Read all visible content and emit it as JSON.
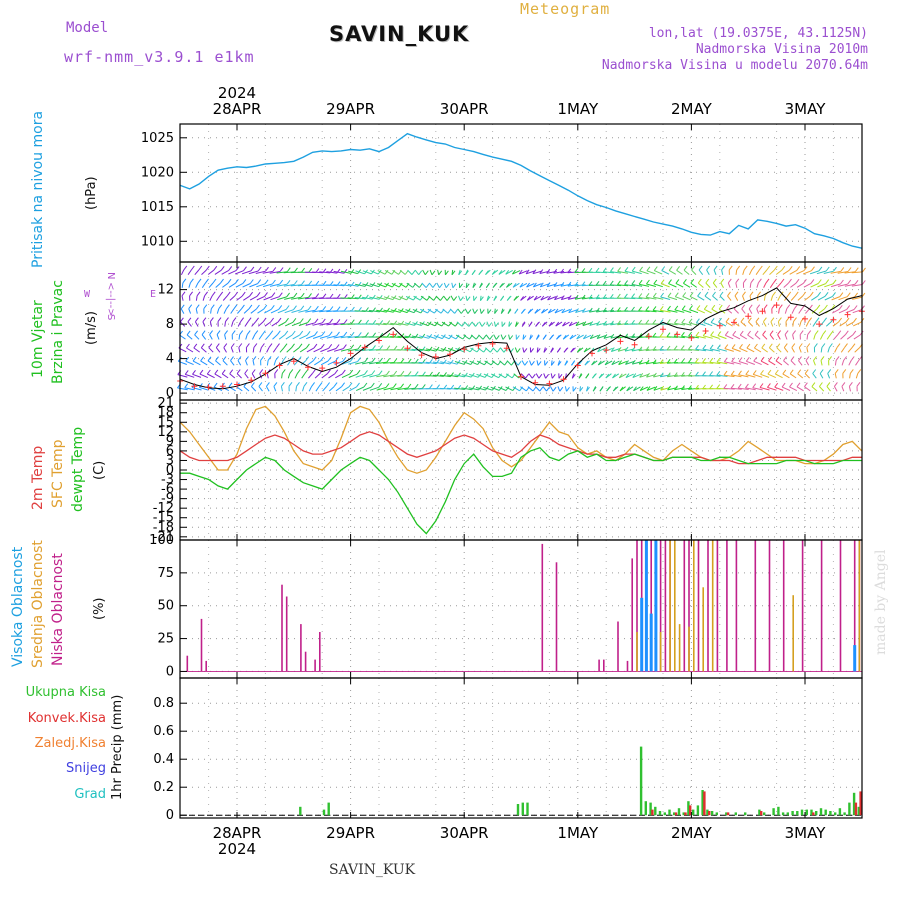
{
  "header": {
    "model_label": "Model",
    "model_name": "wrf-nmm_v3.9.1 e1km",
    "station": "SAVIN_KUK",
    "meteogram_label": "Meteogram",
    "lonlat": "lon,lat (19.0375E, 43.1125N)",
    "elevation": "Nadmorska Visina 2010m",
    "model_elevation": "Nadmorska Visina u modelu 2070.64m"
  },
  "footer": {
    "station": "SAVIN_KUK"
  },
  "watermark": "made by Angel",
  "time_axis": {
    "year": "2024",
    "days": [
      "28APR",
      "29APR",
      "30APR",
      "1MAY",
      "2MAY",
      "3MAY"
    ],
    "hours_start": 0,
    "hours_end": 144
  },
  "panel_labels": {
    "pressure": [
      "Pritisak na nivou mora",
      "(hPa)"
    ],
    "wind": [
      "10m Vjetar",
      "Brzina i Pravac",
      "(m/s)"
    ],
    "compass": [
      "N",
      "<--|-->",
      "W",
      "E",
      "S"
    ],
    "temp": [
      "2m Temp",
      "SFC Temp",
      "dewpt Temp",
      "(C)"
    ],
    "cloud": [
      "Visoka Oblacnost",
      "Srednja Oblacnost",
      "Niska Oblacnost",
      "(%)"
    ],
    "precip": [
      "Ukupna Kisa",
      "Konvek.Kisa",
      "Zaledj.Kisa",
      "Snijeg",
      "Grad",
      "1hr Precip (mm)"
    ]
  },
  "colors": {
    "pressure": "#1ea0e0",
    "temp2m": "#e04040",
    "sfc": "#e0a030",
    "dew": "#20c020",
    "high_cloud": "#1e90ff",
    "mid_cloud": "#d4a020",
    "low_cloud": "#c0208a",
    "total_precip": "#30c030",
    "conv_precip": "#e03030",
    "frozen_precip": "#f08030",
    "snow": "#4040e0",
    "hail": "#20c0c0",
    "wind_label": "#20c020",
    "compass": "#b050d0",
    "cloud_label_high": "#1ea0e0",
    "cloud_label_mid": "#e0a030",
    "cloud_label_low": "#c0208a"
  },
  "chart_data": [
    {
      "type": "line",
      "name": "pressure",
      "ylabel": "Pritisak na nivou mora (hPa)",
      "ylim": [
        1007,
        1027
      ],
      "yticks": [
        1010,
        1015,
        1020,
        1025
      ],
      "grid": true,
      "x": [
        0,
        2,
        4,
        6,
        8,
        10,
        12,
        14,
        16,
        18,
        20,
        22,
        24,
        26,
        28,
        30,
        32,
        34,
        36,
        38,
        40,
        42,
        44,
        46,
        48,
        50,
        52,
        54,
        56,
        58,
        60,
        62,
        64,
        66,
        68,
        70,
        72,
        74,
        76,
        78,
        80,
        82,
        84,
        86,
        88,
        90,
        92,
        94,
        96,
        98,
        100,
        102,
        104,
        106,
        108,
        110,
        112,
        114,
        116,
        118,
        120,
        122,
        124,
        126,
        128,
        130,
        132,
        134,
        136,
        138,
        140,
        142,
        144
      ],
      "values": [
        1018.1,
        1017.6,
        1018.3,
        1019.4,
        1020.3,
        1020.6,
        1020.8,
        1020.7,
        1020.9,
        1021.2,
        1021.3,
        1021.4,
        1021.6,
        1022.2,
        1022.9,
        1023.1,
        1023.0,
        1023.1,
        1023.3,
        1023.2,
        1023.4,
        1023.0,
        1023.6,
        1024.6,
        1025.6,
        1025.1,
        1024.7,
        1024.3,
        1024.1,
        1023.6,
        1023.3,
        1023.0,
        1022.6,
        1022.2,
        1021.9,
        1021.6,
        1021.0,
        1020.2,
        1019.5,
        1018.8,
        1018.1,
        1017.4,
        1016.6,
        1015.9,
        1015.3,
        1014.9,
        1014.4,
        1014.0,
        1013.6,
        1013.2,
        1012.8,
        1012.5,
        1012.2,
        1011.8,
        1011.3,
        1011.0,
        1010.9,
        1011.4,
        1011.1,
        1012.3,
        1011.8,
        1013.1,
        1012.9,
        1012.6,
        1012.2,
        1012.4,
        1011.9,
        1011.1,
        1010.8,
        1010.4,
        1009.8,
        1009.3,
        1009.0
      ]
    },
    {
      "type": "line",
      "name": "wind",
      "ylabel": "(m/s)",
      "ylim": [
        -0.8,
        15.2
      ],
      "yticks": [
        0,
        4,
        8,
        12
      ],
      "grid": true,
      "x": [
        0,
        3,
        6,
        9,
        12,
        15,
        18,
        21,
        24,
        27,
        30,
        33,
        36,
        39,
        42,
        45,
        48,
        51,
        54,
        57,
        60,
        63,
        66,
        69,
        72,
        75,
        78,
        81,
        84,
        87,
        90,
        93,
        96,
        99,
        102,
        105,
        108,
        111,
        114,
        117,
        120,
        123,
        126,
        129,
        132,
        135,
        138,
        141,
        144
      ],
      "series": [
        {
          "values": [
            1.6,
            1.0,
            0.6,
            0.5,
            0.8,
            1.3,
            2.2,
            3.3,
            4.0,
            3.1,
            2.5,
            3.0,
            4.0,
            5.3,
            6.4,
            7.6,
            6.0,
            4.7,
            4.0,
            4.4,
            5.3,
            5.7,
            5.9,
            5.8,
            1.9,
            1.0,
            0.9,
            1.5,
            3.4,
            4.9,
            5.6,
            6.7,
            6.1,
            7.3,
            8.2,
            7.6,
            7.3,
            8.6,
            9.4,
            9.9,
            10.7,
            11.3,
            12.2,
            10.4,
            10.1,
            9.0,
            9.8,
            10.9,
            11.3
          ]
        },
        {
          "values": [
            1.4,
            0.8,
            0.7,
            0.8,
            1.0,
            1.5,
            2.3,
            3.2,
            3.7,
            3.0,
            2.9,
            3.5,
            4.6,
            5.3,
            6.1,
            6.8,
            5.2,
            4.4,
            4.2,
            4.5,
            5.1,
            5.5,
            5.7,
            5.2,
            1.9,
            1.2,
            1.1,
            1.6,
            3.2,
            4.6,
            5.0,
            6.0,
            5.6,
            6.6,
            7.4,
            6.8,
            6.4,
            7.2,
            7.8,
            8.2,
            8.9,
            9.5,
            10.2,
            8.8,
            8.6,
            8.0,
            8.5,
            9.1,
            9.5
          ]
        }
      ]
    },
    {
      "type": "line",
      "name": "temperature",
      "ylabel": "(C)",
      "ylim": [
        -22,
        22
      ],
      "yticks": [
        -21,
        -18,
        -15,
        -12,
        -9,
        -6,
        -3,
        0,
        3,
        6,
        9,
        12,
        15,
        18,
        21
      ],
      "grid": true,
      "x": [
        0,
        2,
        4,
        6,
        8,
        10,
        12,
        14,
        16,
        18,
        20,
        22,
        24,
        26,
        28,
        30,
        32,
        34,
        36,
        38,
        40,
        42,
        44,
        46,
        48,
        50,
        52,
        54,
        56,
        58,
        60,
        62,
        64,
        66,
        68,
        70,
        72,
        74,
        76,
        78,
        80,
        82,
        84,
        86,
        88,
        90,
        92,
        94,
        96,
        98,
        100,
        102,
        104,
        106,
        108,
        110,
        112,
        114,
        116,
        118,
        120,
        122,
        124,
        126,
        128,
        130,
        132,
        134,
        136,
        138,
        140,
        142,
        144
      ],
      "series": [
        {
          "values": [
            6,
            4,
            3,
            3,
            3,
            3,
            4,
            6,
            8,
            10,
            11,
            10,
            8,
            6,
            5,
            5,
            6,
            7,
            9,
            11,
            12,
            11,
            9,
            7,
            5,
            4,
            5,
            6,
            8,
            10,
            11,
            10,
            8,
            6,
            5,
            4,
            6,
            9,
            11,
            10,
            8,
            7,
            6,
            5,
            5,
            4,
            4,
            5,
            5,
            4,
            3,
            3,
            4,
            4,
            4,
            4,
            3,
            3,
            3,
            2,
            2,
            3,
            4,
            4,
            4,
            4,
            3,
            3,
            3,
            3,
            3,
            4,
            4
          ]
        },
        {
          "values": [
            15,
            12,
            8,
            4,
            0,
            0,
            5,
            13,
            19,
            20,
            17,
            12,
            6,
            2,
            1,
            0,
            3,
            10,
            18,
            20,
            19,
            15,
            9,
            4,
            0,
            -1,
            0,
            4,
            9,
            14,
            18,
            16,
            13,
            7,
            3,
            1,
            3,
            7,
            11,
            15,
            12,
            11,
            7,
            5,
            6,
            4,
            3,
            5,
            8,
            6,
            4,
            3,
            6,
            8,
            6,
            4,
            3,
            3,
            4,
            6,
            9,
            7,
            5,
            3,
            3,
            3,
            2,
            2,
            3,
            5,
            8,
            9,
            6
          ]
        },
        {
          "values": [
            -1,
            -1,
            -2,
            -3,
            -5,
            -6,
            -3,
            0,
            2,
            4,
            3,
            0,
            -2,
            -4,
            -5,
            -6,
            -3,
            0,
            2,
            4,
            3,
            0,
            -3,
            -7,
            -12,
            -17,
            -20,
            -16,
            -10,
            -3,
            2,
            5,
            1,
            -2,
            -2,
            -1,
            4,
            6,
            7,
            4,
            3,
            5,
            6,
            4,
            5,
            3,
            3,
            4,
            5,
            4,
            3,
            3,
            4,
            4,
            4,
            3,
            3,
            4,
            4,
            3,
            2,
            2,
            2,
            2,
            3,
            3,
            3,
            2,
            2,
            2,
            3,
            3,
            3
          ]
        }
      ]
    },
    {
      "type": "bar",
      "name": "cloud",
      "ylabel": "(%)",
      "ylim": [
        -5,
        100
      ],
      "yticks": [
        0,
        25,
        50,
        75,
        100
      ],
      "grid": true,
      "series": [
        {
          "name": "Niska Oblacnost",
          "x": [
            1.5,
            4.5,
            5.5,
            21.5,
            22.5,
            25.5,
            26.5,
            28.5,
            29.5,
            76.5,
            79.5,
            88.5,
            89.5,
            92.5,
            94.5,
            95.5,
            96.5,
            97.5,
            98.5,
            99.5,
            101.5,
            102.5,
            103.5,
            106.5,
            107.5,
            109.5,
            111.5,
            113.5,
            115.5,
            117.5,
            121.5,
            124.5,
            127.5,
            131.5,
            135.5,
            139.5,
            142.5,
            143.5
          ],
          "values": [
            12,
            40,
            8,
            66,
            57,
            36,
            15,
            9,
            30,
            97,
            83,
            9,
            9,
            38,
            8,
            86,
            100,
            100,
            100,
            100,
            100,
            100,
            100,
            100,
            100,
            100,
            100,
            100,
            100,
            100,
            100,
            100,
            100,
            100,
            100,
            100,
            100,
            100
          ]
        },
        {
          "name": "Srednja Oblacnost",
          "x": [
            96.5,
            97.5,
            98.5,
            100.5,
            101.5,
            103.5,
            104.5,
            105.5,
            107.5,
            108.5,
            110.5,
            112.5,
            129.5,
            143.5
          ],
          "values": [
            30,
            56,
            100,
            100,
            30,
            100,
            100,
            36,
            34,
            100,
            64,
            100,
            58,
            100
          ]
        },
        {
          "name": "Visoka Oblacnost",
          "x": [
            97.5,
            98.5,
            99.5,
            100.5,
            142.5
          ],
          "values": [
            56,
            100,
            44,
            100,
            20
          ]
        }
      ]
    },
    {
      "type": "bar",
      "name": "precip",
      "ylabel": "1hr Precip (mm)",
      "ylim": [
        -0.02,
        0.98
      ],
      "yticks": [
        0,
        0.2,
        0.4,
        0.6,
        0.8
      ],
      "grid": true,
      "series": [
        {
          "name": "Ukupna Kisa",
          "x": [
            25.5,
            30.5,
            31.5,
            71.5,
            72.5,
            73.5,
            97.5,
            98.5,
            99.5,
            100.5,
            101.5,
            102.5,
            103.5,
            104.5,
            105.5,
            106.5,
            107.5,
            108.5,
            109.5,
            110.5,
            111.5,
            112.5,
            113.5,
            115.5,
            117.5,
            119.5,
            122.5,
            123.5,
            125.5,
            126.5,
            127.5,
            128.5,
            129.5,
            130.5,
            131.5,
            132.5,
            133.5,
            134.5,
            135.5,
            136.5,
            137.5,
            138.5,
            139.5,
            140.5,
            141.5,
            142.5,
            143.5
          ],
          "values": [
            0.06,
            0.04,
            0.09,
            0.08,
            0.09,
            0.09,
            0.49,
            0.1,
            0.09,
            0.06,
            0.03,
            0.02,
            0.04,
            0.02,
            0.05,
            0.02,
            0.1,
            0.04,
            0.07,
            0.18,
            0.04,
            0.03,
            0.02,
            0.02,
            0.02,
            0.02,
            0.04,
            0.02,
            0.05,
            0.06,
            0.02,
            0.02,
            0.03,
            0.03,
            0.04,
            0.04,
            0.04,
            0.03,
            0.05,
            0.04,
            0.03,
            0.02,
            0.05,
            0.02,
            0.09,
            0.16,
            0.06
          ]
        },
        {
          "name": "Konvek.Kisa",
          "x": [
            99.5,
            104.5,
            106.5,
            107.5,
            110.5,
            111.5,
            115.5,
            122.5,
            133.5,
            142.5,
            143.5
          ],
          "values": [
            0.04,
            0.02,
            0.02,
            0.07,
            0.17,
            0.03,
            0.02,
            0.03,
            0.02,
            0.09,
            0.17
          ]
        }
      ]
    }
  ]
}
